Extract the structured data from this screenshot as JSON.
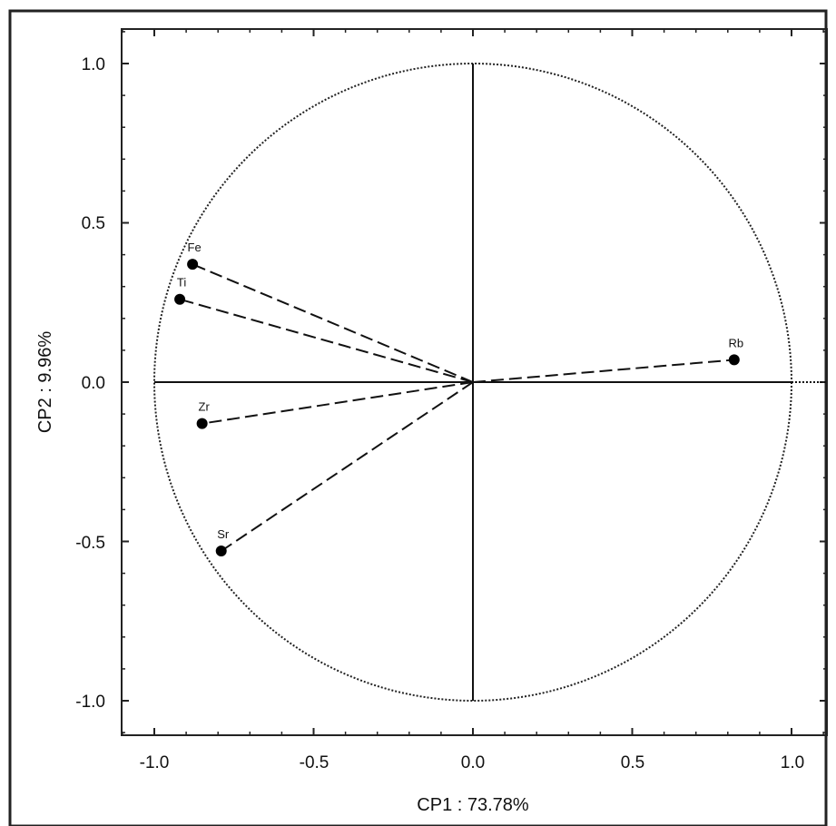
{
  "chart_data": {
    "type": "scatter",
    "title": "",
    "xlabel": "CP1 : 73.78%",
    "ylabel": "CP2 :  9.96%",
    "xlim": [
      -1.1,
      1.1
    ],
    "ylim": [
      -1.1,
      1.1
    ],
    "x_ticks": [
      "-1.0",
      "-0.5",
      "0.0",
      "0.5",
      "1.0"
    ],
    "y_ticks": [
      "1.0",
      "0.5",
      "0.0",
      "-0.5",
      "-1.0"
    ],
    "grid": false,
    "unit_circle": true,
    "vectors_from_origin": true,
    "points": [
      {
        "label": "Fe",
        "x": -0.88,
        "y": 0.37
      },
      {
        "label": "Ti",
        "x": -0.92,
        "y": 0.26
      },
      {
        "label": "Zr",
        "x": -0.85,
        "y": -0.13
      },
      {
        "label": "Sr",
        "x": -0.79,
        "y": -0.53
      },
      {
        "label": "Rb",
        "x": 0.82,
        "y": 0.07
      }
    ]
  }
}
